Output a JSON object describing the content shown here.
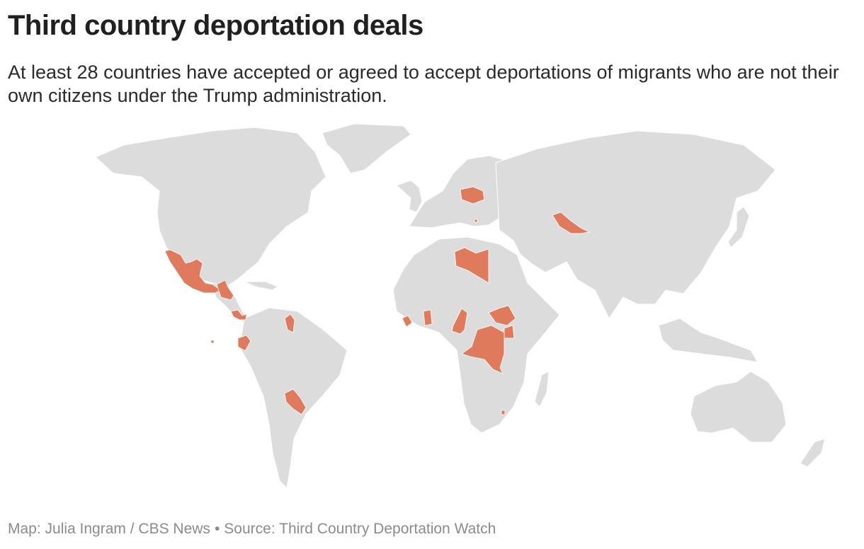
{
  "header": {
    "title": "Third country deportation deals",
    "subtitle": "At least 28 countries have accepted or agreed to accept deportations of migrants who are not their own citizens under the Trump administration."
  },
  "footer": {
    "credit": "Map: Julia Ingram / CBS News",
    "separator": "•",
    "source": "Source: Third Country Deportation Watch"
  },
  "colors": {
    "highlight": "#df7a5c",
    "land": "#dcdcdc",
    "background": "#ffffff"
  }
}
